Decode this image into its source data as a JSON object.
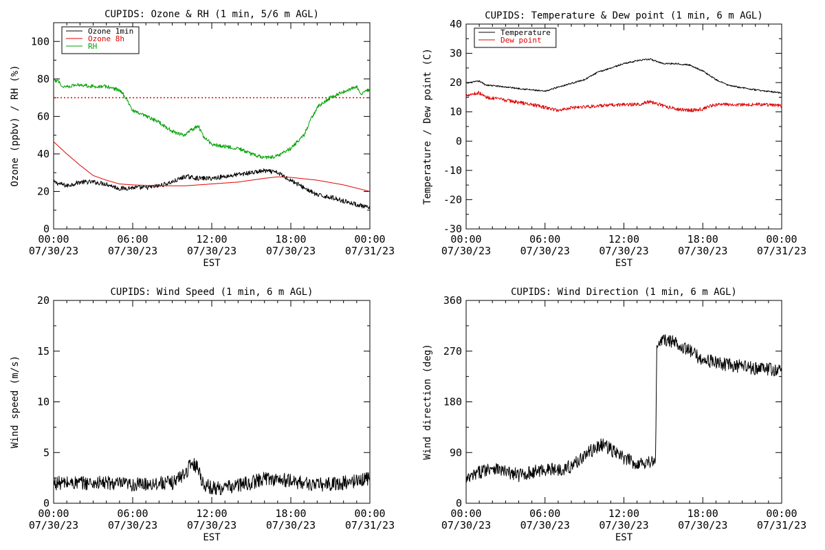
{
  "chart_data": [
    {
      "id": "ozone_rh",
      "type": "line",
      "title": "CUPIDS: Ozone & RH (1 min, 5/6 m AGL)",
      "ylabel": "Ozone (ppbv) / RH (%)",
      "xlabel": "EST",
      "x_ticks": [
        [
          "00:00",
          "07/30/23"
        ],
        [
          "06:00",
          "07/30/23"
        ],
        [
          "12:00",
          "07/30/23"
        ],
        [
          "18:00",
          "07/30/23"
        ],
        [
          "00:00",
          "07/31/23"
        ]
      ],
      "xlim_hours": [
        0,
        24
      ],
      "ylim": [
        0,
        110
      ],
      "y_ticks": [
        0,
        20,
        40,
        60,
        80,
        100
      ],
      "hline": {
        "y": 70,
        "color": "#e00000",
        "style": "dotted"
      },
      "legend_placement": "top-left",
      "series": [
        {
          "name": "Ozone 1min",
          "color": "#000000",
          "noise": 1.2,
          "points": [
            [
              0,
              25
            ],
            [
              1,
              23
            ],
            [
              2,
              25
            ],
            [
              3,
              25
            ],
            [
              4,
              24
            ],
            [
              5,
              21.5
            ],
            [
              6,
              22
            ],
            [
              7,
              22
            ],
            [
              8,
              23
            ],
            [
              9,
              25
            ],
            [
              10,
              28
            ],
            [
              11,
              27
            ],
            [
              12,
              27
            ],
            [
              13,
              28
            ],
            [
              14,
              29
            ],
            [
              15,
              30
            ],
            [
              16,
              31
            ],
            [
              17,
              30
            ],
            [
              18,
              26
            ],
            [
              19,
              22
            ],
            [
              20,
              18
            ],
            [
              21,
              17
            ],
            [
              22,
              15
            ],
            [
              23,
              13
            ],
            [
              24,
              11
            ]
          ]
        },
        {
          "name": "Ozone 8h",
          "color": "#e00000",
          "noise": 0,
          "points": [
            [
              0,
              46.5
            ],
            [
              1,
              40
            ],
            [
              2,
              34
            ],
            [
              3,
              28.5
            ],
            [
              4,
              26
            ],
            [
              5,
              24
            ],
            [
              6,
              23.5
            ],
            [
              8,
              23
            ],
            [
              10,
              23
            ],
            [
              12,
              24
            ],
            [
              14,
              25
            ],
            [
              16,
              27
            ],
            [
              17,
              27.8
            ],
            [
              18,
              27.5
            ],
            [
              20,
              26
            ],
            [
              22,
              23.5
            ],
            [
              24,
              20
            ]
          ]
        },
        {
          "name": "RH",
          "color": "#00a000",
          "noise": 1.0,
          "points": [
            [
              0,
              79
            ],
            [
              0.4,
              79
            ],
            [
              0.6,
              76
            ],
            [
              1,
              76
            ],
            [
              2,
              77
            ],
            [
              3,
              76
            ],
            [
              4,
              76
            ],
            [
              5,
              74
            ],
            [
              5.5,
              70
            ],
            [
              6,
              63
            ],
            [
              7,
              60
            ],
            [
              8,
              57
            ],
            [
              9,
              52
            ],
            [
              10,
              50
            ],
            [
              10.5,
              53
            ],
            [
              11,
              55
            ],
            [
              11.3,
              50
            ],
            [
              12,
              45
            ],
            [
              13,
              44
            ],
            [
              14,
              43
            ],
            [
              15,
              40
            ],
            [
              16,
              38
            ],
            [
              17,
              39
            ],
            [
              18,
              43
            ],
            [
              19,
              50
            ],
            [
              19.5,
              58
            ],
            [
              20,
              65
            ],
            [
              21,
              70
            ],
            [
              22,
              73
            ],
            [
              23,
              76
            ],
            [
              23.3,
              71
            ],
            [
              23.6,
              74
            ],
            [
              24,
              74
            ]
          ]
        }
      ]
    },
    {
      "id": "temp_dew",
      "type": "line",
      "title": "CUPIDS: Temperature & Dew point (1 min, 6 m AGL)",
      "ylabel": "Temperature / Dew point (C)",
      "xlabel": "EST",
      "x_ticks": [
        [
          "00:00",
          "07/30/23"
        ],
        [
          "06:00",
          "07/30/23"
        ],
        [
          "12:00",
          "07/30/23"
        ],
        [
          "18:00",
          "07/30/23"
        ],
        [
          "00:00",
          "07/31/23"
        ]
      ],
      "xlim_hours": [
        0,
        24
      ],
      "ylim": [
        -30,
        40
      ],
      "y_ticks": [
        -30,
        -20,
        -10,
        0,
        10,
        20,
        30,
        40
      ],
      "legend_placement": "top-left",
      "series": [
        {
          "name": "Temperature",
          "color": "#000000",
          "noise": 0.25,
          "points": [
            [
              0,
              19.8
            ],
            [
              1,
              20.5
            ],
            [
              1.5,
              19.2
            ],
            [
              3,
              18.5
            ],
            [
              5,
              17.5
            ],
            [
              6,
              17
            ],
            [
              7,
              18.5
            ],
            [
              9,
              21
            ],
            [
              10,
              23.5
            ],
            [
              11,
              25
            ],
            [
              12,
              26.5
            ],
            [
              13,
              27.5
            ],
            [
              14,
              28
            ],
            [
              15,
              26.5
            ],
            [
              16,
              26.5
            ],
            [
              17,
              26
            ],
            [
              18,
              24
            ],
            [
              19,
              21
            ],
            [
              20,
              19
            ],
            [
              22,
              17.5
            ],
            [
              23,
              17
            ],
            [
              24,
              16.5
            ]
          ]
        },
        {
          "name": "Dew point",
          "color": "#e00000",
          "noise": 0.6,
          "points": [
            [
              0,
              15.8
            ],
            [
              1,
              16.5
            ],
            [
              1.5,
              15
            ],
            [
              3,
              14
            ],
            [
              5,
              12.5
            ],
            [
              6,
              11.5
            ],
            [
              7,
              10.5
            ],
            [
              8,
              11.5
            ],
            [
              10,
              12
            ],
            [
              12,
              12.5
            ],
            [
              13,
              12.5
            ],
            [
              14,
              13.5
            ],
            [
              15,
              12
            ],
            [
              16,
              11
            ],
            [
              17,
              10.5
            ],
            [
              18,
              11
            ],
            [
              19,
              12.5
            ],
            [
              21,
              12.5
            ],
            [
              23,
              12.5
            ],
            [
              24,
              12
            ]
          ]
        }
      ]
    },
    {
      "id": "wind_speed",
      "type": "line",
      "title": "CUPIDS: Wind Speed (1 min, 6 m AGL)",
      "ylabel": "Wind speed (m/s)",
      "xlabel": "EST",
      "x_ticks": [
        [
          "00:00",
          "07/30/23"
        ],
        [
          "06:00",
          "07/30/23"
        ],
        [
          "12:00",
          "07/30/23"
        ],
        [
          "18:00",
          "07/30/23"
        ],
        [
          "00:00",
          "07/31/23"
        ]
      ],
      "xlim_hours": [
        0,
        24
      ],
      "ylim": [
        0,
        20
      ],
      "y_ticks": [
        0,
        5,
        10,
        15,
        20
      ],
      "series": [
        {
          "name": "",
          "color": "#000000",
          "noise": 0.7,
          "points": [
            [
              0,
              2
            ],
            [
              2,
              2
            ],
            [
              4,
              2
            ],
            [
              6,
              1.8
            ],
            [
              8,
              2
            ],
            [
              9,
              2
            ],
            [
              10,
              3
            ],
            [
              10.5,
              4
            ],
            [
              11,
              3.5
            ],
            [
              11.3,
              2
            ],
            [
              12,
              1.5
            ],
            [
              13,
              1.5
            ],
            [
              14,
              1.8
            ],
            [
              15,
              2
            ],
            [
              16,
              2.5
            ],
            [
              18,
              2.2
            ],
            [
              20,
              1.8
            ],
            [
              22,
              2
            ],
            [
              23,
              2.2
            ],
            [
              24,
              2.5
            ]
          ]
        }
      ]
    },
    {
      "id": "wind_dir",
      "type": "line",
      "title": "CUPIDS: Wind Direction (1 min, 6 m AGL)",
      "ylabel": "Wind direction (deg)",
      "xlabel": "EST",
      "x_ticks": [
        [
          "00:00",
          "07/30/23"
        ],
        [
          "06:00",
          "07/30/23"
        ],
        [
          "12:00",
          "07/30/23"
        ],
        [
          "18:00",
          "07/30/23"
        ],
        [
          "00:00",
          "07/31/23"
        ]
      ],
      "xlim_hours": [
        0,
        24
      ],
      "ylim": [
        0,
        360
      ],
      "y_ticks": [
        0,
        90,
        180,
        270,
        360
      ],
      "series": [
        {
          "name": "",
          "color": "#000000",
          "noise": 12,
          "points": [
            [
              0,
              40
            ],
            [
              1,
              55
            ],
            [
              2,
              65
            ],
            [
              3,
              55
            ],
            [
              4,
              50
            ],
            [
              5,
              55
            ],
            [
              6,
              60
            ],
            [
              7,
              60
            ],
            [
              8,
              65
            ],
            [
              9,
              85
            ],
            [
              10,
              100
            ],
            [
              10.5,
              105
            ],
            [
              11,
              95
            ],
            [
              12,
              80
            ],
            [
              13,
              70
            ],
            [
              14,
              75
            ],
            [
              14.4,
              70
            ],
            [
              14.5,
              280
            ],
            [
              15,
              290
            ],
            [
              16,
              285
            ],
            [
              17,
              270
            ],
            [
              18,
              255
            ],
            [
              19,
              250
            ],
            [
              20,
              245
            ],
            [
              22,
              240
            ],
            [
              23,
              238
            ],
            [
              24,
              235
            ]
          ]
        }
      ]
    }
  ]
}
